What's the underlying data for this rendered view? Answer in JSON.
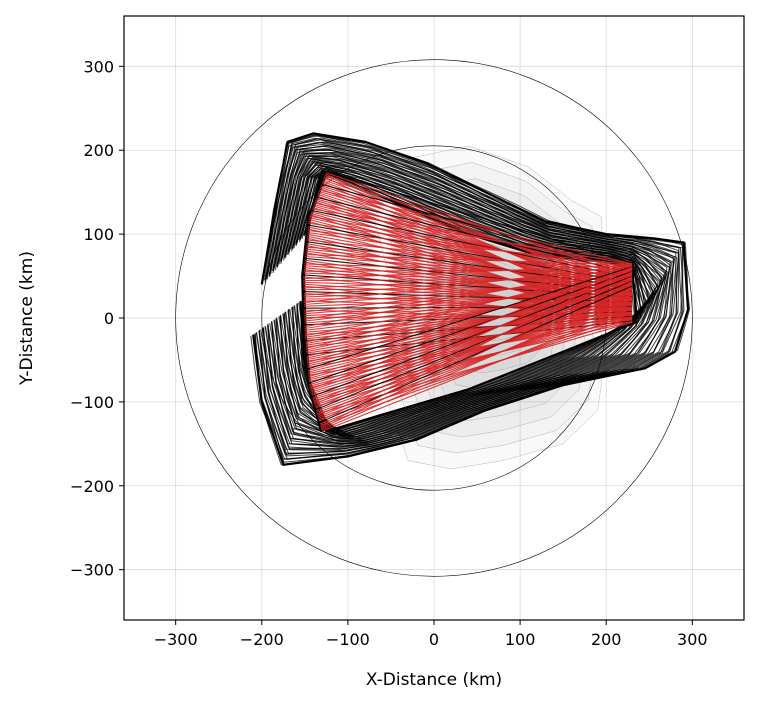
{
  "chart_data": {
    "type": "line",
    "title": "",
    "xlabel": "X-Distance (km)",
    "ylabel": "Y-Distance (km)",
    "xlim": [
      -360,
      360
    ],
    "ylim": [
      -360,
      360
    ],
    "xticks": [
      -300,
      -200,
      -100,
      0,
      100,
      200,
      300
    ],
    "yticks": [
      -300,
      -200,
      -100,
      0,
      100,
      200,
      300
    ],
    "xtick_labels": [
      "−300",
      "−200",
      "−100",
      "0",
      "100",
      "200",
      "300"
    ],
    "ytick_labels": [
      "−300",
      "−200",
      "−100",
      "0",
      "100",
      "200",
      "300"
    ],
    "grid": true,
    "range_rings_km": [
      200,
      300
    ],
    "colors": {
      "trajectories": "#000000",
      "rays": "#d62728",
      "contours": "#9a9a9a",
      "grid": "#d9d9d9"
    },
    "trajectory_envelope": {
      "outer": [
        [
          -200,
          40
        ],
        [
          -185,
          130
        ],
        [
          -170,
          210
        ],
        [
          -140,
          220
        ],
        [
          -80,
          210
        ],
        [
          -10,
          185
        ],
        [
          60,
          150
        ],
        [
          130,
          115
        ],
        [
          200,
          100
        ],
        [
          255,
          95
        ],
        [
          290,
          90
        ],
        [
          295,
          10
        ],
        [
          280,
          -40
        ],
        [
          245,
          -60
        ],
        [
          150,
          -80
        ],
        [
          60,
          -110
        ],
        [
          -20,
          -145
        ],
        [
          -100,
          -165
        ],
        [
          -175,
          -175
        ],
        [
          -200,
          -100
        ],
        [
          -210,
          -20
        ]
      ],
      "inner": [
        [
          -150,
          100
        ],
        [
          -130,
          175
        ],
        [
          -60,
          145
        ],
        [
          40,
          100
        ],
        [
          120,
          75
        ],
        [
          230,
          65
        ],
        [
          235,
          -5
        ],
        [
          150,
          -40
        ],
        [
          40,
          -85
        ],
        [
          -60,
          -115
        ],
        [
          -125,
          -135
        ],
        [
          -150,
          -60
        ],
        [
          -155,
          20
        ]
      ]
    },
    "ray_fan": {
      "start_arc": [
        [
          -125,
          175
        ],
        [
          -145,
          120
        ],
        [
          -152,
          50
        ],
        [
          -150,
          -20
        ],
        [
          -145,
          -80
        ],
        [
          -130,
          -135
        ]
      ],
      "end_segment": [
        [
          230,
          65
        ],
        [
          230,
          -5
        ]
      ]
    },
    "contour_region": [
      [
        -30,
        190
      ],
      [
        40,
        205
      ],
      [
        110,
        180
      ],
      [
        160,
        140
      ],
      [
        195,
        120
      ],
      [
        195,
        80
      ],
      [
        180,
        40
      ],
      [
        200,
        -40
      ],
      [
        190,
        -110
      ],
      [
        150,
        -150
      ],
      [
        80,
        -170
      ],
      [
        20,
        -180
      ],
      [
        -30,
        -170
      ],
      [
        -60,
        -80
      ],
      [
        -40,
        0
      ],
      [
        -70,
        120
      ]
    ]
  }
}
